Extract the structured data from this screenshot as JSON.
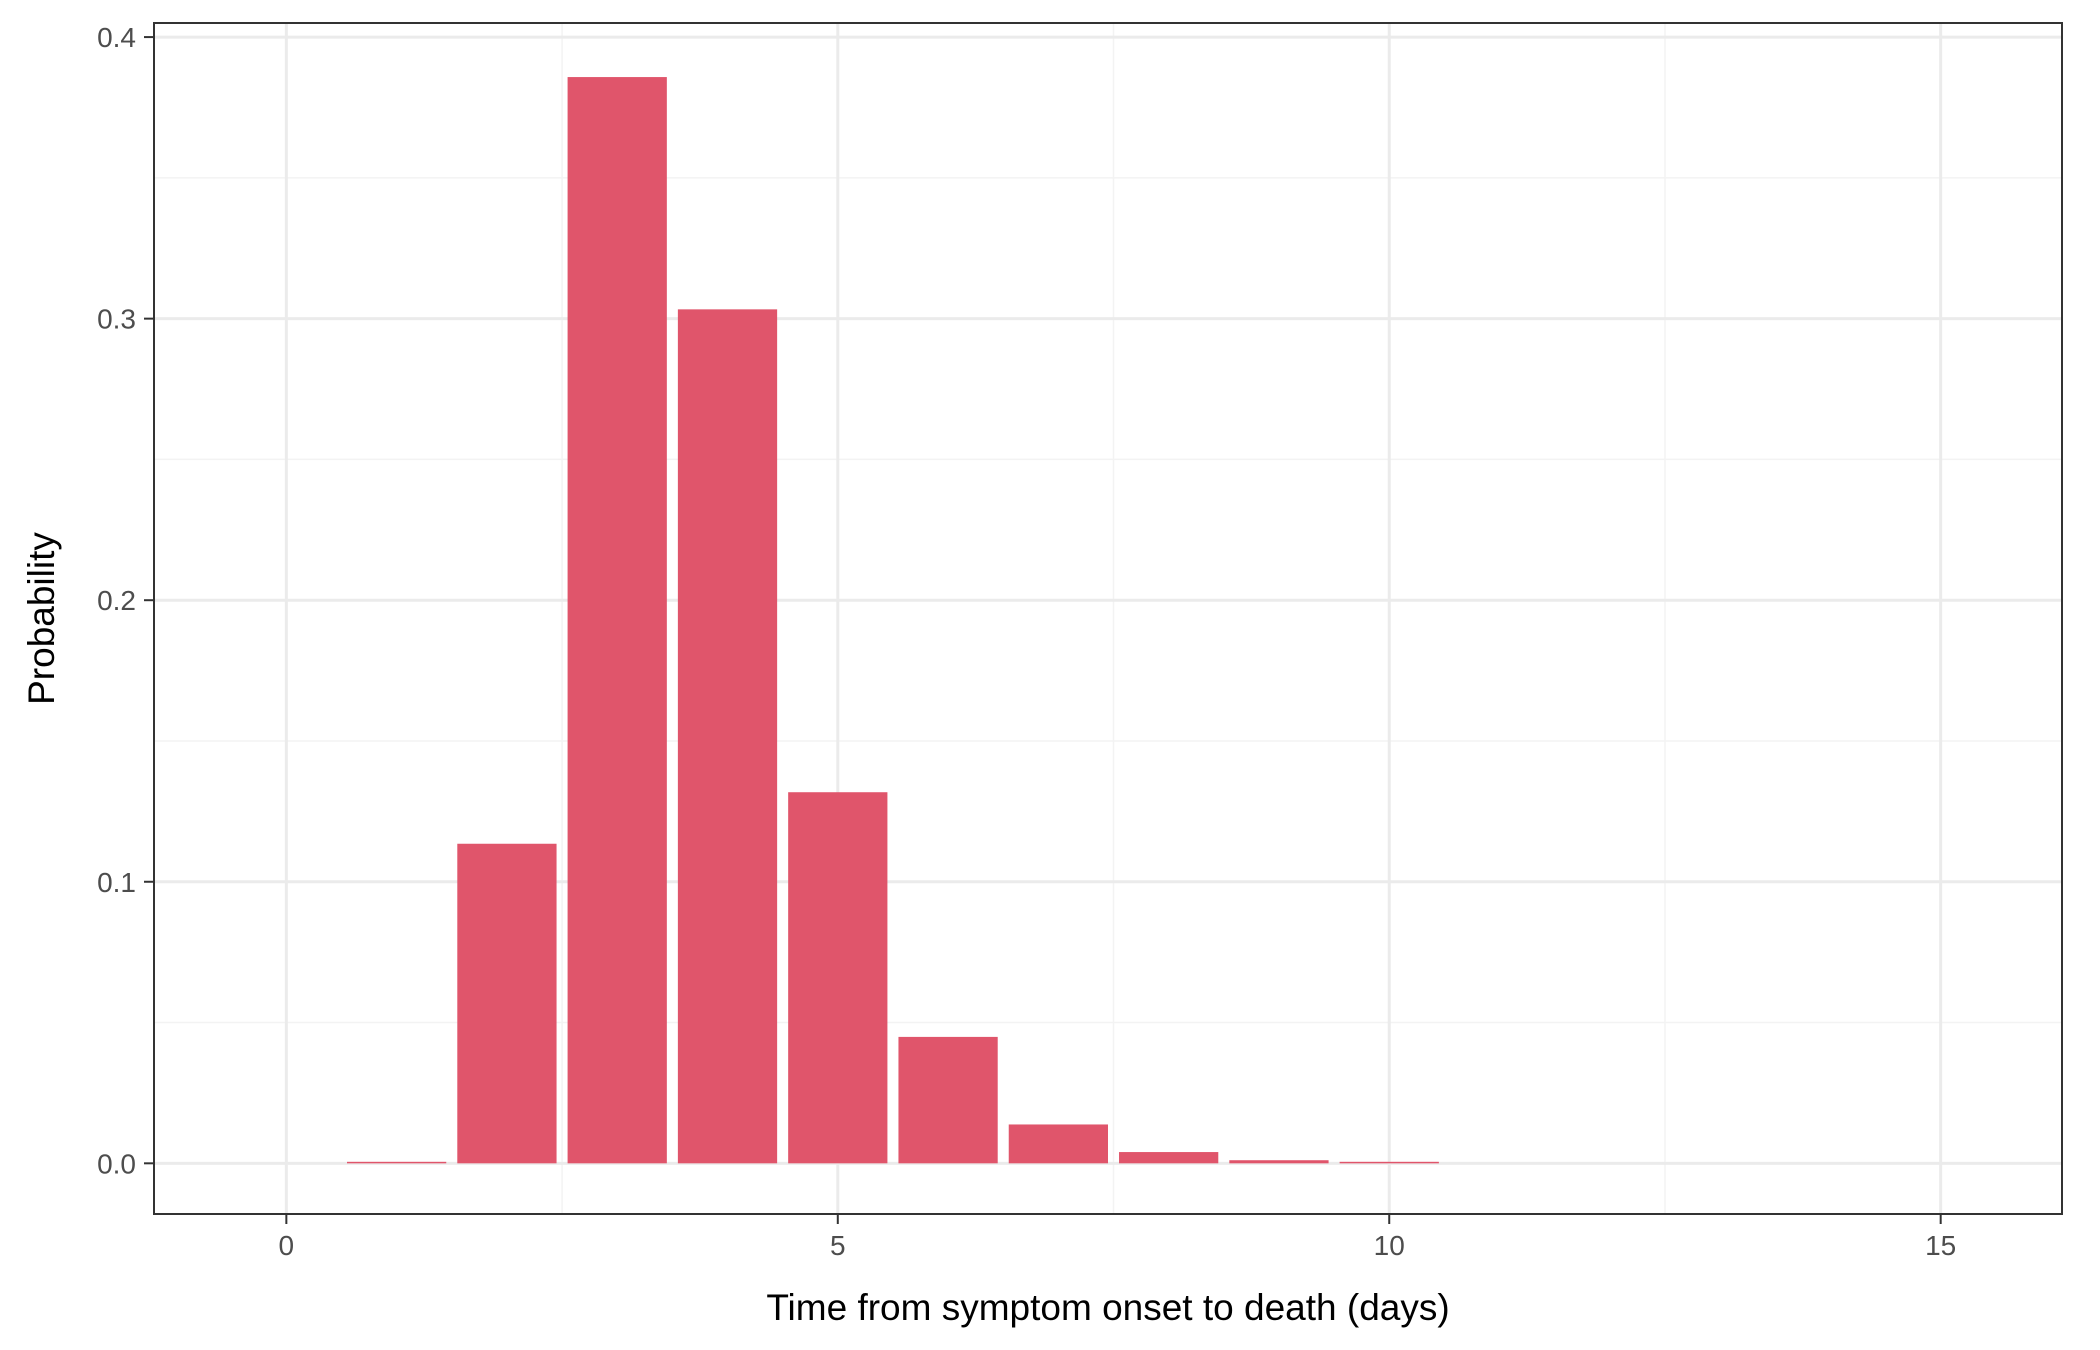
{
  "chart_data": {
    "type": "bar",
    "xlabel": "Time from symptom onset to death (days)",
    "ylabel": "Probability",
    "x": [
      1,
      2,
      3,
      4,
      5,
      6,
      7,
      8,
      9,
      10
    ],
    "values": [
      0.0003,
      0.1135,
      0.3858,
      0.3033,
      0.1318,
      0.0449,
      0.0138,
      0.004,
      0.0011,
      0.0003
    ],
    "xlim": [
      -1.2,
      16.1
    ],
    "ylim": [
      -0.018,
      0.405
    ],
    "xticks": [
      0,
      5,
      10,
      15
    ],
    "xtick_labels": [
      "0",
      "5",
      "10",
      "15"
    ],
    "yticks": [
      0.0,
      0.1,
      0.2,
      0.3,
      0.4
    ],
    "ytick_labels": [
      "0.0",
      "0.1",
      "0.2",
      "0.3",
      "0.4"
    ],
    "bar_width": 0.9,
    "grid": true,
    "legend": "none",
    "colors": {
      "bar": "#E0556B",
      "panel_border": "#333333",
      "grid_major": "#EBEBEB",
      "grid_minor": "#F3F3F3"
    }
  }
}
